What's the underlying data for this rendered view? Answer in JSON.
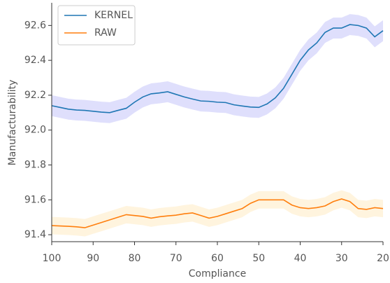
{
  "chart_data": {
    "type": "line",
    "xlabel": "Compliance",
    "ylabel": "Manufacturability",
    "x": [
      100,
      98,
      96,
      94,
      92,
      90,
      88,
      86,
      84,
      82,
      80,
      78,
      76,
      74,
      72,
      70,
      68,
      66,
      64,
      62,
      60,
      58,
      56,
      54,
      52,
      50,
      48,
      46,
      44,
      42,
      40,
      38,
      36,
      34,
      32,
      30,
      28,
      26,
      24,
      22,
      20
    ],
    "series": [
      {
        "name": "KERNEL",
        "color": "#1f77b4",
        "band_color": "rgba(110,110,240,0.22)",
        "values": [
          92.14,
          92.13,
          92.12,
          92.115,
          92.113,
          92.108,
          92.103,
          92.1,
          92.113,
          92.125,
          92.16,
          92.19,
          92.208,
          92.213,
          92.22,
          92.205,
          92.19,
          92.178,
          92.167,
          92.165,
          92.16,
          92.158,
          92.145,
          92.138,
          92.132,
          92.13,
          92.15,
          92.185,
          92.24,
          92.32,
          92.4,
          92.46,
          92.5,
          92.56,
          92.585,
          92.585,
          92.605,
          92.6,
          92.585,
          92.535,
          92.57
        ],
        "upper": [
          92.2,
          92.19,
          92.18,
          92.175,
          92.173,
          92.168,
          92.163,
          92.16,
          92.173,
          92.185,
          92.22,
          92.25,
          92.268,
          92.273,
          92.28,
          92.265,
          92.25,
          92.238,
          92.227,
          92.225,
          92.22,
          92.218,
          92.205,
          92.198,
          92.192,
          92.19,
          92.21,
          92.245,
          92.3,
          92.38,
          92.46,
          92.52,
          92.56,
          92.62,
          92.645,
          92.645,
          92.665,
          92.66,
          92.645,
          92.595,
          92.63
        ],
        "lower": [
          92.08,
          92.07,
          92.06,
          92.055,
          92.053,
          92.048,
          92.043,
          92.04,
          92.053,
          92.065,
          92.1,
          92.13,
          92.148,
          92.153,
          92.16,
          92.145,
          92.13,
          92.118,
          92.107,
          92.105,
          92.1,
          92.098,
          92.085,
          92.078,
          92.072,
          92.07,
          92.09,
          92.125,
          92.18,
          92.26,
          92.34,
          92.4,
          92.44,
          92.5,
          92.525,
          92.525,
          92.545,
          92.54,
          92.525,
          92.475,
          92.51
        ]
      },
      {
        "name": "RAW",
        "color": "#ff7f0e",
        "band_color": "rgba(255,200,90,0.2)",
        "values": [
          91.452,
          91.45,
          91.448,
          91.445,
          91.44,
          91.455,
          91.47,
          91.485,
          91.5,
          91.515,
          91.51,
          91.505,
          91.495,
          91.503,
          91.508,
          91.512,
          91.52,
          91.525,
          91.51,
          91.495,
          91.505,
          91.52,
          91.535,
          91.55,
          91.58,
          91.6,
          91.6,
          91.6,
          91.6,
          91.57,
          91.555,
          91.55,
          91.555,
          91.565,
          91.59,
          91.605,
          91.59,
          91.55,
          91.545,
          91.555,
          91.55
        ],
        "upper": [
          91.502,
          91.5,
          91.498,
          91.495,
          91.49,
          91.505,
          91.52,
          91.535,
          91.55,
          91.565,
          91.56,
          91.555,
          91.545,
          91.553,
          91.558,
          91.562,
          91.57,
          91.575,
          91.56,
          91.545,
          91.555,
          91.57,
          91.585,
          91.6,
          91.63,
          91.65,
          91.65,
          91.65,
          91.65,
          91.62,
          91.605,
          91.6,
          91.605,
          91.615,
          91.64,
          91.655,
          91.64,
          91.6,
          91.595,
          91.605,
          91.6
        ],
        "lower": [
          91.402,
          91.4,
          91.398,
          91.395,
          91.39,
          91.405,
          91.42,
          91.435,
          91.45,
          91.465,
          91.46,
          91.455,
          91.445,
          91.453,
          91.458,
          91.462,
          91.47,
          91.475,
          91.46,
          91.445,
          91.455,
          91.47,
          91.485,
          91.5,
          91.53,
          91.55,
          91.55,
          91.55,
          91.55,
          91.52,
          91.505,
          91.5,
          91.505,
          91.515,
          91.54,
          91.555,
          91.54,
          91.5,
          91.495,
          91.505,
          91.5
        ]
      }
    ],
    "xlim": [
      100,
      20
    ],
    "xticks": [
      100,
      90,
      80,
      70,
      60,
      50,
      40,
      30,
      20
    ],
    "ylim": [
      91.36,
      92.73
    ],
    "yticks": [
      91.4,
      91.6,
      91.8,
      {
        "value": 92,
        "label": "92.0"
      },
      92.2,
      92.4,
      92.6
    ],
    "grid": false,
    "legend": "upper left"
  }
}
